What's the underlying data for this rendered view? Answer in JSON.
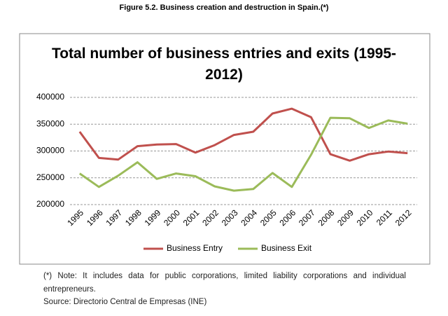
{
  "figure_title": "Figure 5.2. Business creation and destruction in Spain.(*)",
  "chart_data": {
    "type": "line",
    "title": "Total number of business entries and exits (1995-2012)",
    "categories": [
      "1995",
      "1996",
      "1997",
      "1998",
      "1999",
      "2000",
      "2001",
      "2002",
      "2003",
      "2004",
      "2005",
      "2006",
      "2007",
      "2008",
      "2009",
      "2010",
      "2011",
      "2012"
    ],
    "series": [
      {
        "name": "Business Entry",
        "color": "#c0504d",
        "values": [
          336000,
          287000,
          284000,
          309000,
          312000,
          313000,
          297000,
          311000,
          330000,
          336000,
          370000,
          379000,
          363000,
          294000,
          282000,
          294000,
          299000,
          296000
        ]
      },
      {
        "name": "Business Exit",
        "color": "#9bbb59",
        "values": [
          258000,
          233000,
          254000,
          279000,
          248000,
          258000,
          253000,
          234000,
          226000,
          229000,
          259000,
          233000,
          293000,
          362000,
          361000,
          343000,
          357000,
          351000
        ]
      }
    ],
    "ylim": [
      200000,
      400000
    ],
    "yticks": [
      200000,
      250000,
      300000,
      350000,
      400000
    ],
    "grid": true,
    "legend": "bottom"
  },
  "note": "(*) Note: It includes data for public corporations, limited liability corporations and individual entrepreneurs.",
  "source": "Source: Directorio Central de Empresas (INE)"
}
